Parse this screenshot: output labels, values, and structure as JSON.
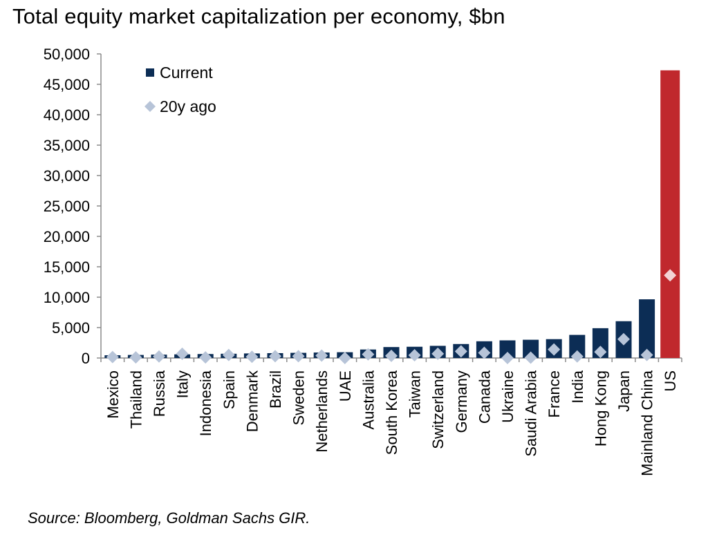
{
  "chart_data": {
    "type": "bar",
    "title": "Total equity market capitalization per economy, $bn",
    "source": "Source: Bloomberg, Goldman Sachs GIR.",
    "categories": [
      "Mexico",
      "Thailand",
      "Russia",
      "Italy",
      "Indonesia",
      "Spain",
      "Denmark",
      "Brazil",
      "Sweden",
      "Netherlands",
      "UAE",
      "Australia",
      "South Korea",
      "Taiwan",
      "Switzerland",
      "Germany",
      "Canada",
      "Ukraine",
      "Saudi Arabia",
      "France",
      "India",
      "Hong Kong",
      "Japan",
      "Mainland China",
      "US"
    ],
    "series": [
      {
        "name": "Current",
        "type": "bar",
        "color": "#0c2d55",
        "values": [
          450,
          500,
          550,
          600,
          650,
          700,
          750,
          800,
          850,
          900,
          950,
          1400,
          1800,
          1850,
          2000,
          2300,
          2750,
          2900,
          3000,
          3100,
          3800,
          4900,
          6050,
          9650,
          47300
        ]
      },
      {
        "name": "20y ago",
        "type": "scatter",
        "marker": "diamond",
        "color": "#b7c4d8",
        "values": [
          150,
          100,
          250,
          700,
          100,
          500,
          200,
          300,
          300,
          400,
          0,
          600,
          350,
          450,
          700,
          1100,
          850,
          0,
          50,
          1400,
          250,
          1000,
          3100,
          500,
          13600
        ]
      }
    ],
    "highlight": {
      "category": "US",
      "bar_color": "#c0282d",
      "marker_color": "#f3d2d4"
    },
    "ylim": [
      0,
      50000
    ],
    "yticks": [
      "0",
      "5,000",
      "10,000",
      "15,000",
      "20,000",
      "25,000",
      "30,000",
      "35,000",
      "40,000",
      "45,000",
      "50,000"
    ],
    "legend": "top-left",
    "grid": false
  }
}
